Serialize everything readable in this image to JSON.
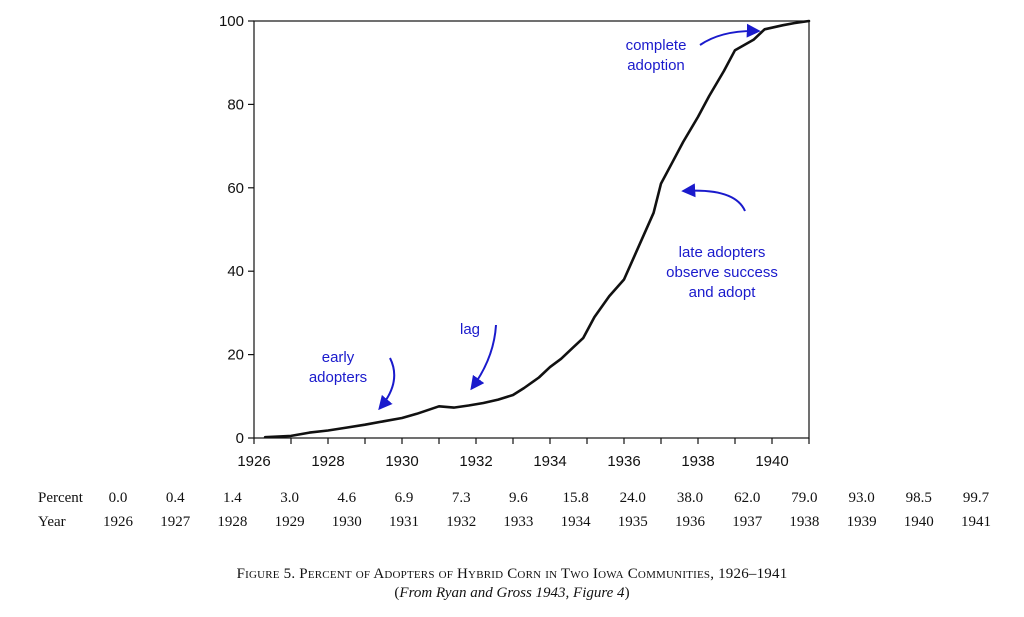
{
  "chart_data": {
    "type": "line",
    "title": "",
    "xlabel": "",
    "ylabel": "",
    "xlim": [
      1926,
      1941
    ],
    "ylim": [
      0,
      100
    ],
    "x_ticks": [
      1926,
      1928,
      1930,
      1932,
      1934,
      1936,
      1938,
      1940
    ],
    "y_ticks": [
      0,
      20,
      40,
      60,
      80,
      100
    ],
    "grid": false,
    "series": [
      {
        "name": "Percent of adopters",
        "x": [
          1926.3,
          1927.0,
          1927.5,
          1928.0,
          1928.5,
          1929.0,
          1929.5,
          1930.0,
          1930.4,
          1930.8,
          1931.0,
          1931.4,
          1931.8,
          1932.2,
          1932.6,
          1933.0,
          1933.3,
          1933.7,
          1934.0,
          1934.3,
          1934.6,
          1934.9,
          1935.2,
          1935.6,
          1935.8,
          1936.0,
          1936.4,
          1936.8,
          1937.0,
          1937.3,
          1937.6,
          1938.0,
          1938.3,
          1938.7,
          1939.0,
          1939.5,
          1939.8,
          1940.3,
          1940.6,
          1941.0
        ],
        "y": [
          0.2,
          0.5,
          1.3,
          1.8,
          2.5,
          3.2,
          4.0,
          4.8,
          5.8,
          7.0,
          7.6,
          7.3,
          7.8,
          8.4,
          9.2,
          10.3,
          12.0,
          14.5,
          17.0,
          19.0,
          21.5,
          24.0,
          29.0,
          34.0,
          36.0,
          38.0,
          46.0,
          54.0,
          61.0,
          66.0,
          71.0,
          77.0,
          82.0,
          88.0,
          93.0,
          95.5,
          98.0,
          99.0,
          99.5,
          100.0
        ]
      }
    ],
    "annotations": [
      {
        "lines": [
          "complete",
          "adoption"
        ]
      },
      {
        "lines": [
          "late adopters",
          "observe success",
          "and adopt"
        ]
      },
      {
        "lines": [
          "lag"
        ]
      },
      {
        "lines": [
          "early",
          "adopters"
        ]
      }
    ],
    "annotation_color": "#1a1acc",
    "line_color": "#111111"
  },
  "table": {
    "rows": [
      {
        "label": "Percent",
        "values": [
          "0.0",
          "0.4",
          "1.4",
          "3.0",
          "4.6",
          "6.9",
          "7.3",
          "9.6",
          "15.8",
          "24.0",
          "38.0",
          "62.0",
          "79.0",
          "93.0",
          "98.5",
          "99.7"
        ]
      },
      {
        "label": "Year",
        "values": [
          "1926",
          "1927",
          "1928",
          "1929",
          "1930",
          "1931",
          "1932",
          "1933",
          "1934",
          "1935",
          "1936",
          "1937",
          "1938",
          "1939",
          "1940",
          "1941"
        ]
      }
    ]
  },
  "caption": {
    "title": "Figure 5. Percent of Adopters of Hybrid Corn in Two Iowa Communities, 1926–1941",
    "source_prefix": "(",
    "source_italic": "From Ryan and Gross 1943, Figure 4",
    "source_suffix": ")"
  }
}
